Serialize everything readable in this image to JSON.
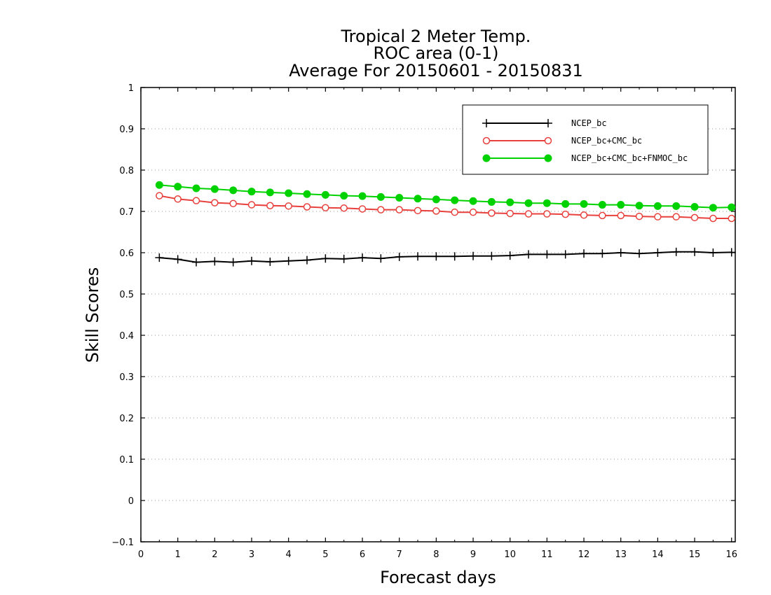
{
  "chart_data": {
    "type": "line",
    "title": [
      "Tropical 2 Meter Temp.",
      "ROC area (0-1)",
      "Average For 20150601 - 20150831"
    ],
    "xlabel": "Forecast days",
    "ylabel": "Skill Scores",
    "xlim": [
      0,
      16.1
    ],
    "ylim": [
      -0.1,
      1
    ],
    "xticks": [
      "0",
      "1",
      "2",
      "3",
      "4",
      "5",
      "6",
      "7",
      "8",
      "9",
      "10",
      "11",
      "12",
      "13",
      "14",
      "15",
      "16"
    ],
    "yticks": [
      "−0.1",
      "0",
      "0.1",
      "0.2",
      "0.3",
      "0.4",
      "0.5",
      "0.6",
      "0.7",
      "0.8",
      "0.9",
      "1"
    ],
    "grid": "horizontal-dotted",
    "legend_position": "top-right",
    "x": [
      0.5,
      1,
      1.5,
      2,
      2.5,
      3,
      3.5,
      4,
      4.5,
      5,
      5.5,
      6,
      6.5,
      7,
      7.5,
      8,
      8.5,
      9,
      9.5,
      10,
      10.5,
      11,
      11.5,
      12,
      12.5,
      13,
      13.5,
      14,
      14.5,
      15,
      15.5,
      16
    ],
    "series": [
      {
        "name": "NCEP_bc",
        "color": "#000000",
        "marker": "plus",
        "values": [
          0.588,
          0.584,
          0.577,
          0.579,
          0.577,
          0.58,
          0.578,
          0.58,
          0.582,
          0.586,
          0.585,
          0.588,
          0.586,
          0.59,
          0.591,
          0.591,
          0.591,
          0.592,
          0.592,
          0.593,
          0.596,
          0.596,
          0.596,
          0.598,
          0.598,
          0.6,
          0.598,
          0.6,
          0.602,
          0.602,
          0.6,
          0.601
        ]
      },
      {
        "name": "NCEP_bc+CMC_bc",
        "color": "#e8403c",
        "marker": "open-circle",
        "values": [
          0.738,
          0.73,
          0.726,
          0.721,
          0.719,
          0.716,
          0.714,
          0.713,
          0.711,
          0.709,
          0.708,
          0.706,
          0.704,
          0.704,
          0.702,
          0.701,
          0.698,
          0.698,
          0.696,
          0.695,
          0.694,
          0.694,
          0.693,
          0.691,
          0.69,
          0.69,
          0.688,
          0.687,
          0.687,
          0.685,
          0.683,
          0.683
        ]
      },
      {
        "name": "NCEP_bc+CMC_bc+FNMOC_bc",
        "color": "#00d200",
        "marker": "filled-circle",
        "values": [
          0.764,
          0.76,
          0.756,
          0.754,
          0.751,
          0.748,
          0.746,
          0.744,
          0.742,
          0.74,
          0.738,
          0.737,
          0.735,
          0.733,
          0.731,
          0.729,
          0.727,
          0.725,
          0.723,
          0.722,
          0.72,
          0.72,
          0.718,
          0.718,
          0.716,
          0.716,
          0.714,
          0.713,
          0.713,
          0.711,
          0.709,
          0.71
        ]
      }
    ]
  }
}
